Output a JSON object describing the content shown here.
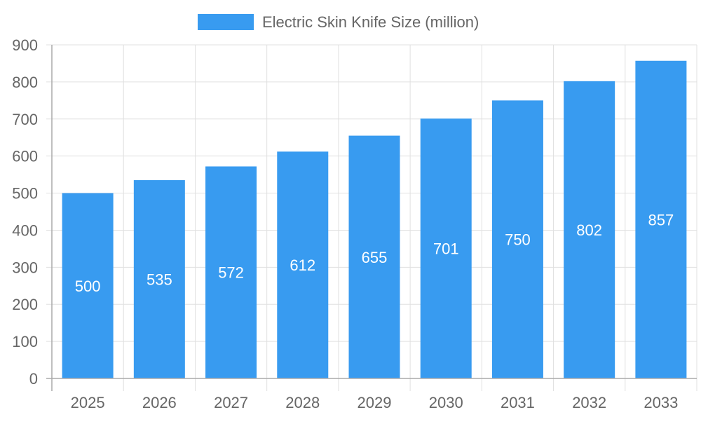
{
  "chart_data": {
    "type": "bar",
    "categories": [
      "2025",
      "2026",
      "2027",
      "2028",
      "2029",
      "2030",
      "2031",
      "2032",
      "2033"
    ],
    "series": [
      {
        "name": "Electric Skin Knife Size (million)",
        "values": [
          500,
          535,
          572,
          612,
          655,
          701,
          750,
          802,
          857
        ]
      }
    ],
    "ylim": [
      0,
      900
    ],
    "yticks": [
      0,
      100,
      200,
      300,
      400,
      500,
      600,
      700,
      800,
      900
    ],
    "grid": true,
    "legend": "top",
    "data_labels": true,
    "colors": {
      "bar": "#389bf0",
      "grid": "#e0e0e0",
      "axis": "#aaaaaa",
      "text": "#666666",
      "label": "#ffffff"
    }
  }
}
